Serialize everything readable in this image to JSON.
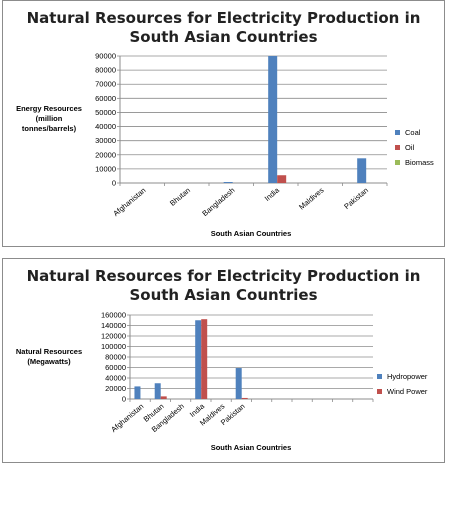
{
  "chart_data": [
    {
      "type": "bar",
      "title_line1": "Natural Resources for Electricity Production in",
      "title_line2": "South Asian Countries",
      "xlabel": "South Asian Countries",
      "ylabel_lines": [
        "Energy Resources",
        "(million",
        "tonnes/barrels)"
      ],
      "categories": [
        "Afghanistan",
        "Bhutan",
        "Bangladesh",
        "India",
        "Maldives",
        "Pakistan"
      ],
      "ylim": [
        0,
        90000
      ],
      "yticks": [
        "0",
        "10000",
        "20000",
        "30000",
        "40000",
        "50000",
        "60000",
        "70000",
        "80000",
        "90000"
      ],
      "grid": true,
      "legend_position": "right",
      "series": [
        {
          "name": "Coal",
          "color": "#4f81bd",
          "values": [
            0,
            0,
            700,
            90000,
            0,
            17500
          ]
        },
        {
          "name": "Oil",
          "color": "#c0504d",
          "values": [
            0,
            0,
            0,
            5500,
            0,
            0
          ]
        },
        {
          "name": "Biomass",
          "color": "#9bbb59",
          "values": [
            0,
            0,
            0,
            0,
            0,
            0
          ]
        }
      ]
    },
    {
      "type": "bar",
      "title_line1": "Natural Resources for Electricity Production in",
      "title_line2": "South Asian Countries",
      "xlabel": "South Asian Countries",
      "ylabel_lines": [
        "Natural Resources",
        "(Megawatts)"
      ],
      "categories": [
        "Afghanistan",
        "Bhutan",
        "Bangladesh",
        "India",
        "Maldives",
        "Pakistan",
        "",
        "",
        "",
        "",
        "",
        ""
      ],
      "ylim": [
        0,
        160000
      ],
      "yticks": [
        "0",
        "20000",
        "40000",
        "60000",
        "80000",
        "100000",
        "120000",
        "140000",
        "160000"
      ],
      "grid": true,
      "legend_position": "right",
      "series": [
        {
          "name": "Hydropower",
          "color": "#4f81bd",
          "values": [
            24000,
            30000,
            0,
            150000,
            0,
            59000,
            0,
            0,
            0,
            0,
            0,
            0
          ]
        },
        {
          "name": "Wind Power",
          "color": "#c0504d",
          "values": [
            0,
            5000,
            0,
            152000,
            0,
            2000,
            0,
            0,
            0,
            0,
            0,
            0
          ]
        }
      ]
    }
  ]
}
